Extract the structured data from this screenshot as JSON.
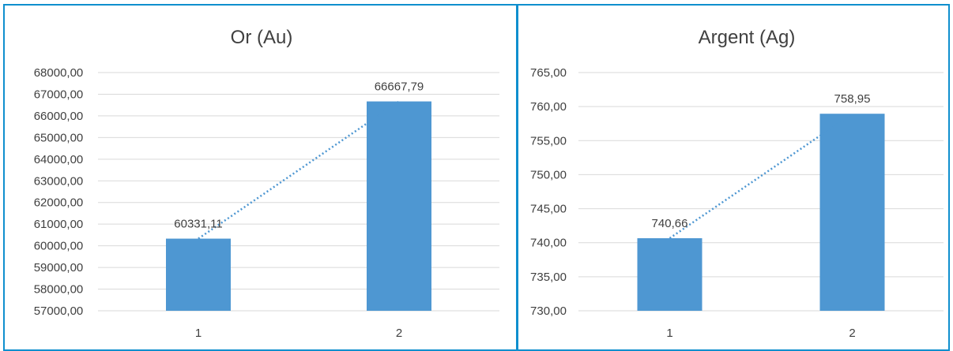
{
  "chart_data": [
    {
      "type": "bar",
      "title": "Or (Au)",
      "categories": [
        "1",
        "2"
      ],
      "values": [
        60331.11,
        66667.79
      ],
      "value_labels": [
        "60331,11",
        "66667,79"
      ],
      "ylim": [
        57000,
        68000
      ],
      "yticks": [
        "57000,00",
        "58000,00",
        "59000,00",
        "60000,00",
        "61000,00",
        "62000,00",
        "63000,00",
        "64000,00",
        "65000,00",
        "66000,00",
        "67000,00",
        "68000,00"
      ],
      "trendline": "linear-dotted",
      "grid": true,
      "legend": "none",
      "color": "#4e97d2"
    },
    {
      "type": "bar",
      "title": "Argent (Ag)",
      "categories": [
        "1",
        "2"
      ],
      "values": [
        740.66,
        758.95
      ],
      "value_labels": [
        "740,66",
        "758,95"
      ],
      "ylim": [
        730,
        765
      ],
      "yticks": [
        "730,00",
        "735,00",
        "740,00",
        "745,00",
        "750,00",
        "755,00",
        "760,00",
        "765,00"
      ],
      "trendline": "linear-dotted",
      "grid": true,
      "legend": "none",
      "color": "#4e97d2"
    }
  ]
}
